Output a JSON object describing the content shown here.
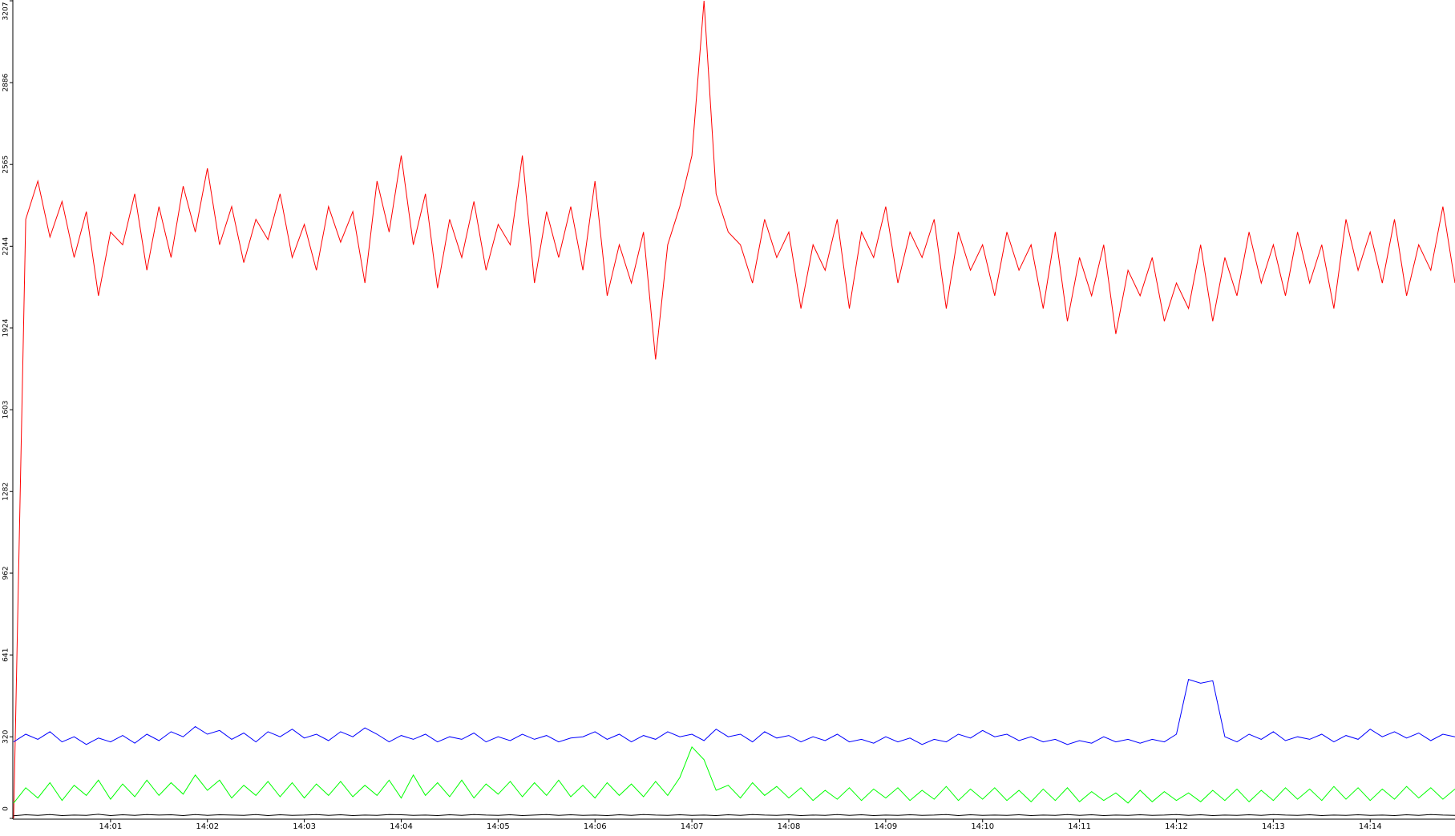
{
  "chart_data": {
    "type": "line",
    "categories": [
      null,
      null,
      null,
      null,
      null,
      null,
      null,
      null,
      "14:01",
      null,
      null,
      null,
      null,
      null,
      null,
      null,
      "14:02",
      null,
      null,
      null,
      null,
      null,
      null,
      null,
      "14:03",
      null,
      null,
      null,
      null,
      null,
      null,
      null,
      "14:04",
      null,
      null,
      null,
      null,
      null,
      null,
      null,
      "14:05",
      null,
      null,
      null,
      null,
      null,
      null,
      null,
      "14:06",
      null,
      null,
      null,
      null,
      null,
      null,
      null,
      "14:07",
      null,
      null,
      null,
      null,
      null,
      null,
      null,
      "14:08",
      null,
      null,
      null,
      null,
      null,
      null,
      null,
      "14:09",
      null,
      null,
      null,
      null,
      null,
      null,
      null,
      "14:10",
      null,
      null,
      null,
      null,
      null,
      null,
      null,
      "14:11",
      null,
      null,
      null,
      null,
      null,
      null,
      null,
      "14:12",
      null,
      null,
      null,
      null,
      null,
      null,
      null,
      "14:13",
      null,
      null,
      null,
      null,
      null,
      null,
      null,
      "14:14",
      null,
      null,
      null,
      null,
      null,
      null,
      null
    ],
    "series": [
      {
        "color": "#ff0000",
        "values": [
          0,
          2350,
          2500,
          2280,
          2420,
          2200,
          2380,
          2050,
          2300,
          2250,
          2450,
          2150,
          2400,
          2200,
          2480,
          2300,
          2550,
          2250,
          2400,
          2180,
          2350,
          2270,
          2450,
          2200,
          2330,
          2150,
          2400,
          2260,
          2380,
          2100,
          2500,
          2300,
          2600,
          2250,
          2450,
          2080,
          2350,
          2200,
          2420,
          2150,
          2330,
          2250,
          2600,
          2100,
          2380,
          2200,
          2400,
          2150,
          2500,
          2050,
          2250,
          2100,
          2300,
          1800,
          2250,
          2400,
          2600,
          3207,
          2450,
          2300,
          2250,
          2100,
          2350,
          2200,
          2300,
          2000,
          2250,
          2150,
          2350,
          2000,
          2300,
          2200,
          2400,
          2100,
          2300,
          2200,
          2350,
          2000,
          2300,
          2150,
          2250,
          2050,
          2300,
          2150,
          2250,
          2000,
          2300,
          1950,
          2200,
          2050,
          2250,
          1900,
          2150,
          2050,
          2200,
          1950,
          2100,
          2000,
          2250,
          1950,
          2200,
          2050,
          2300,
          2100,
          2250,
          2050,
          2300,
          2100,
          2250,
          2000,
          2350,
          2150,
          2300,
          2100,
          2350,
          2050,
          2250,
          2150,
          2400,
          2100
        ]
      },
      {
        "color": "#0000ff",
        "values": [
          300,
          330,
          310,
          340,
          300,
          320,
          290,
          315,
          300,
          325,
          295,
          330,
          305,
          340,
          320,
          360,
          330,
          345,
          310,
          335,
          300,
          340,
          320,
          350,
          315,
          330,
          305,
          340,
          320,
          355,
          330,
          300,
          325,
          310,
          330,
          300,
          320,
          310,
          335,
          300,
          320,
          305,
          330,
          310,
          325,
          300,
          315,
          320,
          340,
          310,
          330,
          300,
          325,
          310,
          340,
          320,
          330,
          305,
          350,
          320,
          330,
          300,
          340,
          315,
          325,
          300,
          320,
          305,
          330,
          300,
          310,
          295,
          320,
          300,
          315,
          290,
          310,
          300,
          330,
          315,
          345,
          320,
          330,
          305,
          320,
          300,
          310,
          290,
          305,
          295,
          320,
          300,
          310,
          295,
          310,
          300,
          330,
          545,
          530,
          540,
          320,
          300,
          330,
          310,
          340,
          305,
          320,
          310,
          330,
          300,
          325,
          310,
          350,
          320,
          340,
          315,
          335,
          305,
          330,
          320
        ]
      },
      {
        "color": "#00ff00",
        "values": [
          60,
          120,
          80,
          140,
          70,
          130,
          90,
          150,
          75,
          135,
          85,
          150,
          90,
          140,
          95,
          170,
          110,
          150,
          80,
          130,
          90,
          145,
          85,
          140,
          80,
          135,
          90,
          145,
          85,
          130,
          90,
          150,
          80,
          170,
          90,
          140,
          85,
          150,
          80,
          135,
          95,
          145,
          85,
          140,
          90,
          150,
          85,
          130,
          80,
          140,
          90,
          135,
          85,
          145,
          90,
          160,
          280,
          230,
          110,
          130,
          80,
          140,
          90,
          125,
          80,
          120,
          70,
          110,
          75,
          120,
          70,
          115,
          80,
          120,
          70,
          110,
          75,
          125,
          70,
          115,
          75,
          120,
          70,
          110,
          65,
          115,
          70,
          120,
          65,
          105,
          70,
          100,
          60,
          110,
          65,
          105,
          70,
          100,
          65,
          110,
          70,
          115,
          65,
          110,
          70,
          120,
          75,
          115,
          70,
          125,
          75,
          120,
          70,
          115,
          75,
          125,
          80,
          120,
          75,
          115
        ]
      },
      {
        "color": "#000000",
        "values": [
          10,
          14,
          12,
          15,
          11,
          13,
          12,
          16,
          11,
          14,
          12,
          15,
          13,
          14,
          11,
          15,
          12,
          14,
          13,
          12,
          15,
          11,
          14,
          12,
          13,
          15,
          12,
          14,
          11,
          13,
          12,
          15,
          14,
          12,
          13,
          11,
          14,
          12,
          15,
          13,
          12,
          14,
          11,
          13,
          15,
          12,
          14,
          12,
          13,
          11,
          14,
          12,
          15,
          13,
          12,
          14,
          12,
          13,
          11,
          14,
          12,
          15,
          13,
          12,
          14,
          11,
          13,
          12,
          15,
          12,
          14,
          11,
          13,
          12,
          14,
          12,
          13,
          15,
          11,
          14,
          12,
          13,
          12,
          14,
          11,
          13,
          12,
          15,
          12,
          14,
          11,
          13,
          12,
          14,
          12,
          13,
          15,
          12,
          14,
          11,
          13,
          12,
          14,
          12,
          15,
          13,
          12,
          14,
          11,
          13,
          12,
          14,
          12,
          13,
          11,
          14,
          12,
          15,
          13,
          12
        ]
      }
    ],
    "ylim": [
      0,
      3207
    ],
    "yticks": [
      0,
      320,
      641,
      962,
      1282,
      1603,
      1924,
      2244,
      2565,
      2886,
      3207
    ]
  }
}
